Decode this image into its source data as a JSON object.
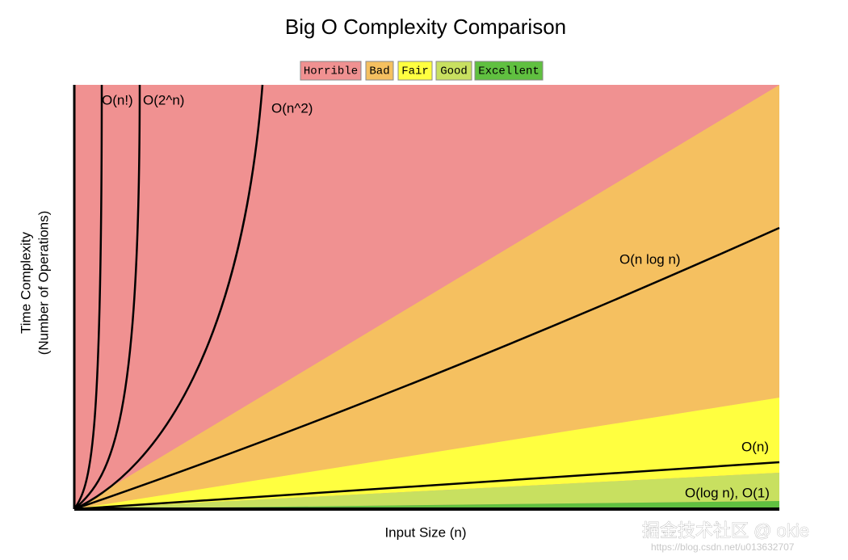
{
  "title": "Big O Complexity Comparison",
  "legend": [
    "Horrible",
    "Bad",
    "Fair",
    "Good",
    "Excellent"
  ],
  "curves": [
    "O(n!)",
    "O(2^n)",
    "O(n^2)",
    "O(n log n)",
    "O(n)",
    "O(log n), O(1)"
  ],
  "y_axis_label": [
    "Time Complexity",
    "(Number of Operations)"
  ],
  "x_axis_label": "Input Size (n)",
  "watermark": "掘金技术社区 @ okie",
  "url": "https://blog.csdn.net/u013632707"
}
